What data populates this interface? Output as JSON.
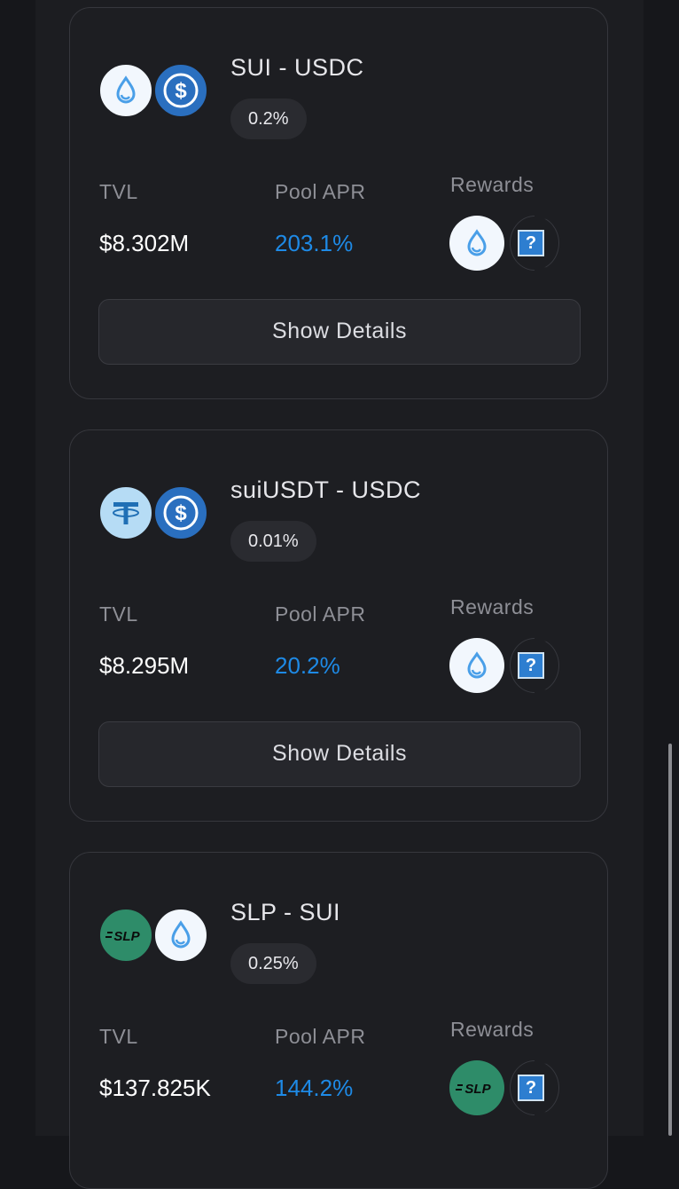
{
  "pools": [
    {
      "pair": "SUI - USDC",
      "fee": "0.2%",
      "tvl_label": "TVL",
      "apr_label": "Pool APR",
      "rewards_label": "Rewards",
      "tvl": "$8.302M",
      "apr": "203.1%",
      "tokens": [
        "sui-icon",
        "usdc-icon"
      ],
      "reward_icons": [
        "sui-icon",
        "unknown-token-icon"
      ],
      "details_label": "Show Details"
    },
    {
      "pair": "suiUSDT - USDC",
      "fee": "0.01%",
      "tvl_label": "TVL",
      "apr_label": "Pool APR",
      "rewards_label": "Rewards",
      "tvl": "$8.295M",
      "apr": "20.2%",
      "tokens": [
        "usdt-icon",
        "usdc-icon"
      ],
      "reward_icons": [
        "sui-icon",
        "unknown-token-icon"
      ],
      "details_label": "Show Details"
    },
    {
      "pair": "SLP - SUI",
      "fee": "0.25%",
      "tvl_label": "TVL",
      "apr_label": "Pool APR",
      "rewards_label": "Rewards",
      "tvl": "$137.825K",
      "apr": "144.2%",
      "tokens": [
        "slp-icon",
        "sui-icon"
      ],
      "reward_icons": [
        "slp-icon",
        "unknown-token-icon"
      ],
      "details_label": "Show Details"
    }
  ],
  "icon_text": {
    "unknown": "?",
    "slp": "SLP"
  },
  "colors": {
    "apr": "#1e8ae6",
    "background": "#16171b",
    "card": "#1d1e22"
  }
}
